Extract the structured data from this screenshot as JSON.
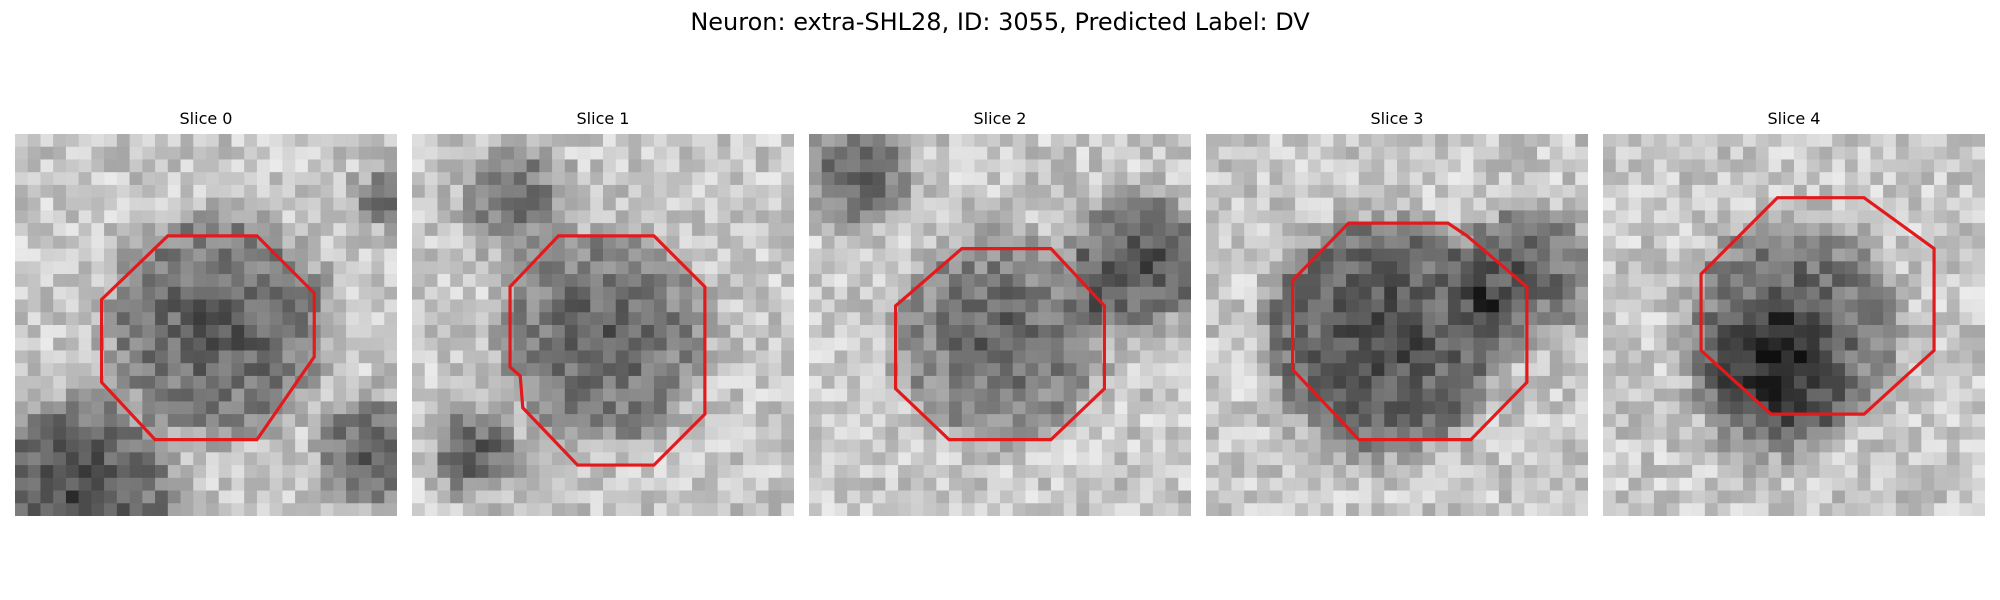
{
  "figure": {
    "title": "Neuron: extra-SHL28, ID: 3055, Predicted Label: DV",
    "outline_color": "#e31a1c"
  },
  "slices": [
    {
      "title": "Slice 0"
    },
    {
      "title": "Slice 1"
    },
    {
      "title": "Slice 2"
    },
    {
      "title": "Slice 3"
    },
    {
      "title": "Slice 4"
    }
  ]
}
